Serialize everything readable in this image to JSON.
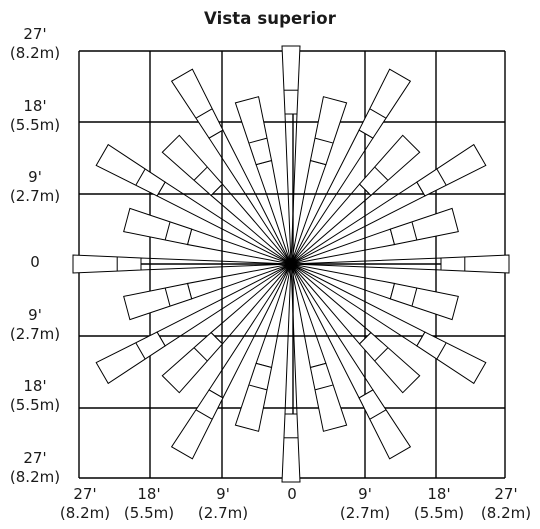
{
  "title": "Vista superior",
  "y_labels": [
    {
      "ft": "27'",
      "m": "(8.2m)"
    },
    {
      "ft": "18'",
      "m": "(5.5m)"
    },
    {
      "ft": "9'",
      "m": "(2.7m)"
    },
    {
      "ft": "0",
      "m": ""
    },
    {
      "ft": "9'",
      "m": "(2.7m)"
    },
    {
      "ft": "18'",
      "m": "(5.5m)"
    },
    {
      "ft": "27'",
      "m": "(8.2m)"
    }
  ],
  "x_labels": [
    {
      "ft": "27'",
      "m": "(8.2m)"
    },
    {
      "ft": "18'",
      "m": "(5.5m)"
    },
    {
      "ft": "9'",
      "m": "(2.7m)"
    },
    {
      "ft": "0",
      "m": ""
    },
    {
      "ft": "9'",
      "m": "(2.7m)"
    },
    {
      "ft": "18'",
      "m": "(5.5m)"
    },
    {
      "ft": "27'",
      "m": "(8.2m)"
    }
  ]
}
